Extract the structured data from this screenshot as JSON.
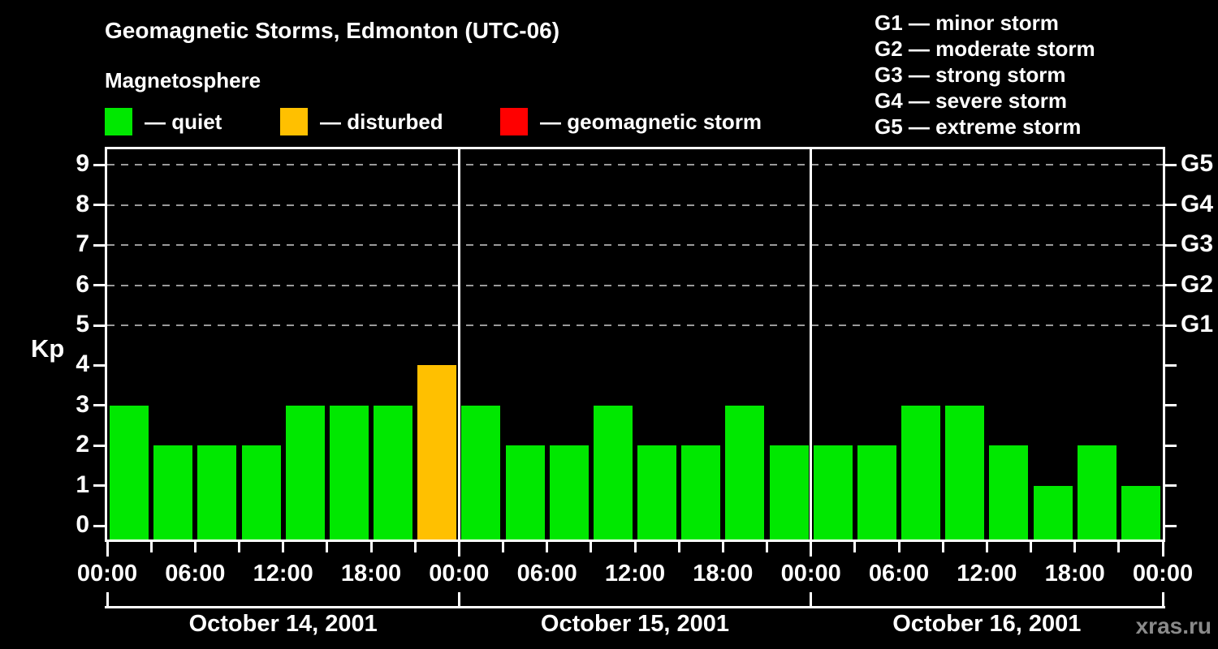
{
  "header": {
    "title": "Geomagnetic Storms, Edmonton (UTC-06)",
    "subtitle": "Magnetosphere",
    "legend": [
      {
        "key": "quiet",
        "label": "— quiet"
      },
      {
        "key": "disturbed",
        "label": "— disturbed"
      },
      {
        "key": "storm",
        "label": "— geomagnetic storm"
      }
    ],
    "g_scale": [
      "G1 — minor storm",
      "G2 — moderate storm",
      "G3 — strong storm",
      "G4 — severe storm",
      "G5 — extreme storm"
    ]
  },
  "chart_data": {
    "type": "bar",
    "title": "Geomagnetic Storms, Edmonton (UTC-06)",
    "subtitle": "Magnetosphere",
    "ylabel": "Kp",
    "ylim": [
      0,
      9
    ],
    "y_ticks": [
      0,
      1,
      2,
      3,
      4,
      5,
      6,
      7,
      8,
      9
    ],
    "grid_levels": [
      5,
      6,
      7,
      8,
      9
    ],
    "grid_on": true,
    "right_axis": [
      {
        "kp": 5,
        "label": "G1"
      },
      {
        "kp": 6,
        "label": "G2"
      },
      {
        "kp": 7,
        "label": "G3"
      },
      {
        "kp": 8,
        "label": "G4"
      },
      {
        "kp": 9,
        "label": "G5"
      }
    ],
    "interval_hours": 3,
    "x_tick_labels": [
      "00:00",
      "06:00",
      "12:00",
      "18:00"
    ],
    "x_end_label": "00:00",
    "days": [
      {
        "date": "October 14, 2001",
        "kp": [
          3,
          2,
          2,
          2,
          3,
          3,
          3,
          4
        ]
      },
      {
        "date": "October 15, 2001",
        "kp": [
          3,
          2,
          2,
          3,
          2,
          2,
          3,
          2
        ]
      },
      {
        "date": "October 16, 2001",
        "kp": [
          2,
          2,
          3,
          3,
          2,
          1,
          2,
          1
        ]
      }
    ],
    "thresholds": {
      "disturbed": 4,
      "storm": 5
    },
    "colors": {
      "quiet": "#00e800",
      "disturbed": "#ffc000",
      "storm": "#ff0000"
    }
  },
  "watermark": "xras.ru"
}
